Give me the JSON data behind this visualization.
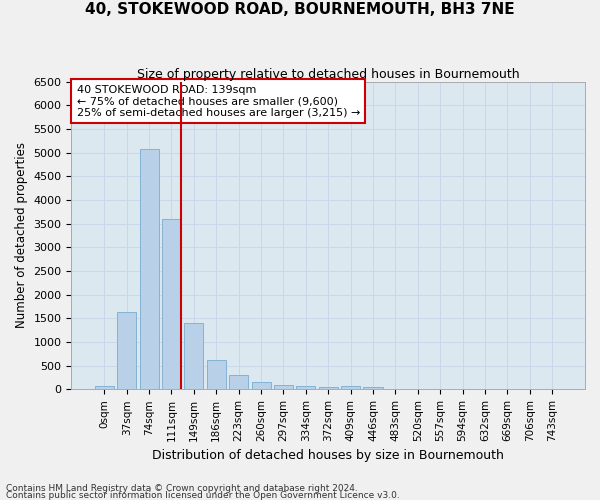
{
  "title": "40, STOKEWOOD ROAD, BOURNEMOUTH, BH3 7NE",
  "subtitle": "Size of property relative to detached houses in Bournemouth",
  "xlabel": "Distribution of detached houses by size in Bournemouth",
  "ylabel": "Number of detached properties",
  "bar_labels": [
    "0sqm",
    "37sqm",
    "74sqm",
    "111sqm",
    "149sqm",
    "186sqm",
    "223sqm",
    "260sqm",
    "297sqm",
    "334sqm",
    "372sqm",
    "409sqm",
    "446sqm",
    "483sqm",
    "520sqm",
    "557sqm",
    "594sqm",
    "632sqm",
    "669sqm",
    "706sqm",
    "743sqm"
  ],
  "bar_values": [
    70,
    1640,
    5080,
    3590,
    1400,
    620,
    310,
    155,
    100,
    60,
    55,
    70,
    50,
    0,
    0,
    0,
    0,
    0,
    0,
    0,
    0
  ],
  "bar_color": "#b8d0e8",
  "bar_edge_color": "#7aaad0",
  "vline_color": "#cc0000",
  "annotation_text": "40 STOKEWOOD ROAD: 139sqm\n← 75% of detached houses are smaller (9,600)\n25% of semi-detached houses are larger (3,215) →",
  "annotation_box_color": "#ffffff",
  "annotation_box_edge": "#cc0000",
  "ylim": [
    0,
    6500
  ],
  "yticks": [
    0,
    500,
    1000,
    1500,
    2000,
    2500,
    3000,
    3500,
    4000,
    4500,
    5000,
    5500,
    6000,
    6500
  ],
  "grid_color": "#c8d8e8",
  "bg_color": "#dce8f0",
  "fig_color": "#f0f0f0",
  "footer1": "Contains HM Land Registry data © Crown copyright and database right 2024.",
  "footer2": "Contains public sector information licensed under the Open Government Licence v3.0."
}
